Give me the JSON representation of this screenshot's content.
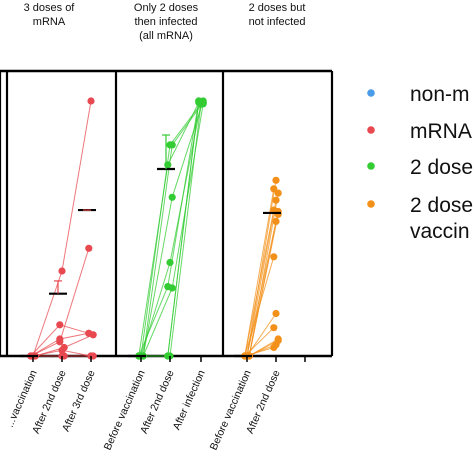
{
  "chart_data": {
    "type": "scatter",
    "panels": [
      {
        "title": [
          "3 doses of",
          "mRNA"
        ],
        "color": "#e8484f",
        "categories": [
          "...vaccination",
          "After 2nd dose",
          "After 3rd dose"
        ],
        "subjects": [
          [
            0,
            10,
            76
          ],
          [
            0,
            60,
            180
          ],
          [
            0,
            6,
            15
          ],
          [
            0,
            12,
            16
          ],
          [
            0,
            4,
            0
          ],
          [
            0,
            0,
            0
          ],
          [
            0,
            22,
            16
          ],
          [
            0,
            0,
            0
          ]
        ],
        "means": [
          0,
          44,
          103
        ],
        "errors": [
          null,
          [
            0,
            9
          ],
          [
            0,
            0
          ]
        ]
      },
      {
        "title": [
          "Only 2 doses",
          "then infected",
          "(all mRNA)"
        ],
        "color": "#33cc33",
        "categories": [
          "Before vaccination",
          "After 2nd dose",
          "After infection"
        ],
        "subjects": [
          [
            0,
            49,
            180
          ],
          [
            0,
            66,
            178
          ],
          [
            0,
            48,
            178
          ],
          [
            0,
            0,
            180
          ],
          [
            0,
            0,
            178
          ],
          [
            0,
            112,
            180
          ],
          [
            0,
            135,
            179
          ],
          [
            0,
            149,
            178
          ],
          [
            0,
            149,
            179
          ],
          [
            0,
            0,
            180
          ]
        ],
        "means": [
          0,
          132,
          null
        ],
        "errors": [
          null,
          [
            0,
            24
          ],
          null
        ]
      },
      {
        "title": [
          "2 doses but",
          "not infected"
        ],
        "color": "#f39019",
        "categories": [
          "Before vaccination",
          "After 2nd dose"
        ],
        "subjects": [
          [
            0,
            6
          ],
          [
            0,
            8
          ],
          [
            0,
            12
          ],
          [
            0,
            20
          ],
          [
            0,
            30
          ],
          [
            0,
            11
          ],
          [
            0,
            70
          ],
          [
            0,
            95
          ],
          [
            0,
            102
          ],
          [
            0,
            103
          ],
          [
            0,
            110
          ],
          [
            0,
            115
          ],
          [
            0,
            118
          ],
          [
            0,
            124
          ],
          [
            0,
            100
          ]
        ],
        "means": [
          0,
          101
        ],
        "errors": null
      }
    ],
    "ylim": [
      0,
      180
    ],
    "legend": {
      "placement": "right",
      "entries": [
        {
          "label": "non-m",
          "color": "#4a9be8"
        },
        {
          "label": "mRNA",
          "color": "#e8484f"
        },
        {
          "label": "2 dose",
          "color": "#33cc33"
        },
        {
          "label": "2 dose",
          "label2": "vaccin",
          "color": "#f39019"
        }
      ]
    }
  }
}
